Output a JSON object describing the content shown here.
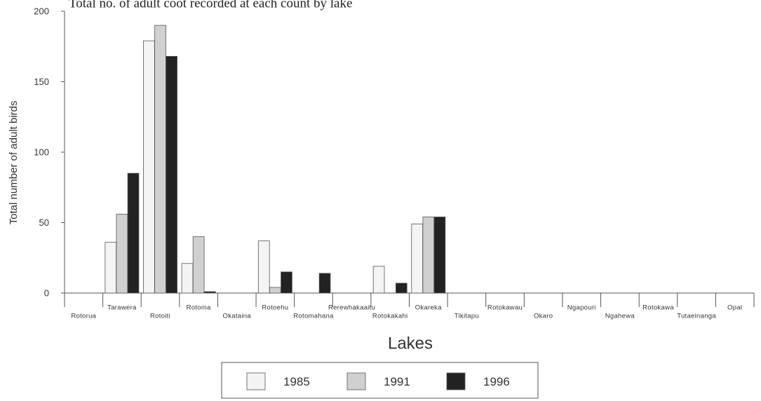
{
  "chart_data": {
    "type": "bar",
    "title": "Total no. of adult coot recorded at each count by lake",
    "xlabel": "Lakes",
    "ylabel": "Total number of adult birds",
    "ylim": [
      0,
      200
    ],
    "yticks": [
      0,
      50,
      100,
      150,
      200
    ],
    "categories": [
      "Rotorua",
      "Tarawera",
      "Rotoiti",
      "Rotoma",
      "Okataina",
      "Rotoehu",
      "Rotomahana",
      "Rerewhakaaitu",
      "Rotokakahi",
      "Okareka",
      "Tikitapu",
      "Rotokawau",
      "Okaro",
      "Ngapouri",
      "Ngahewa",
      "Rotokawa",
      "Tutaeinanga",
      "Opal"
    ],
    "series": [
      {
        "name": "1985",
        "color": "#f4f4f4",
        "values": [
          0,
          36,
          179,
          21,
          0,
          37,
          0,
          0,
          19,
          49,
          0,
          0,
          0,
          0,
          0,
          0,
          0,
          0
        ]
      },
      {
        "name": "1991",
        "color": "#d0d0d0",
        "values": [
          0,
          56,
          190,
          40,
          0,
          4,
          0,
          0,
          0,
          54,
          0,
          0,
          0,
          0,
          0,
          0,
          0,
          0
        ]
      },
      {
        "name": "1996",
        "color": "#222222",
        "values": [
          0,
          85,
          168,
          1,
          0,
          15,
          14,
          0,
          7,
          54,
          0,
          0,
          0,
          0,
          0,
          0,
          0,
          0
        ]
      }
    ],
    "grid": false,
    "legend_position": "bottom-center"
  }
}
